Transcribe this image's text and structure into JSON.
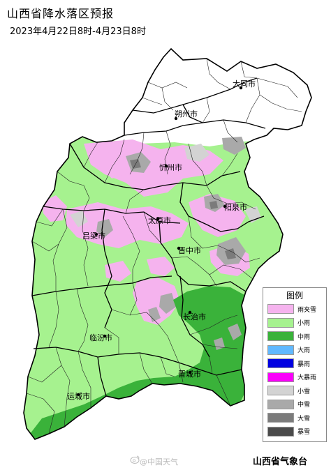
{
  "title": "山西省降水落区预报",
  "subtitle": "2023年4月22日8时-4月23日8时",
  "cities": [
    {
      "id": "datong",
      "label": "大同市"
    },
    {
      "id": "shuozhou",
      "label": "朔州市"
    },
    {
      "id": "xinzhou",
      "label": "忻州市"
    },
    {
      "id": "yangquan",
      "label": "阳泉市"
    },
    {
      "id": "taiyuan",
      "label": "太原市"
    },
    {
      "id": "lvliang",
      "label": "吕梁市"
    },
    {
      "id": "jinzhong",
      "label": "晋中市"
    },
    {
      "id": "changzhi",
      "label": "长治市"
    },
    {
      "id": "linfen",
      "label": "临汾市"
    },
    {
      "id": "jincheng",
      "label": "晋城市"
    },
    {
      "id": "yuncheng",
      "label": "运城市"
    }
  ],
  "legend": {
    "title": "图例",
    "items": [
      {
        "label": "雨夹雪",
        "color": "#f5b3ee"
      },
      {
        "label": "小雨",
        "color": "#a6f28f"
      },
      {
        "label": "中雨",
        "color": "#3ab23a"
      },
      {
        "label": "大雨",
        "color": "#61b8ff"
      },
      {
        "label": "暴雨",
        "color": "#0000e1"
      },
      {
        "label": "大暴雨",
        "color": "#fa00fa"
      },
      {
        "label": "小雪",
        "color": "#d3d3d3"
      },
      {
        "label": "中雪",
        "color": "#a9a9a9"
      },
      {
        "label": "大雪",
        "color": "#7b7b7b"
      },
      {
        "label": "暴雪",
        "color": "#4a4a4a"
      }
    ]
  },
  "footer": {
    "watermark": "@中国天气",
    "source": "山西省气象台"
  }
}
